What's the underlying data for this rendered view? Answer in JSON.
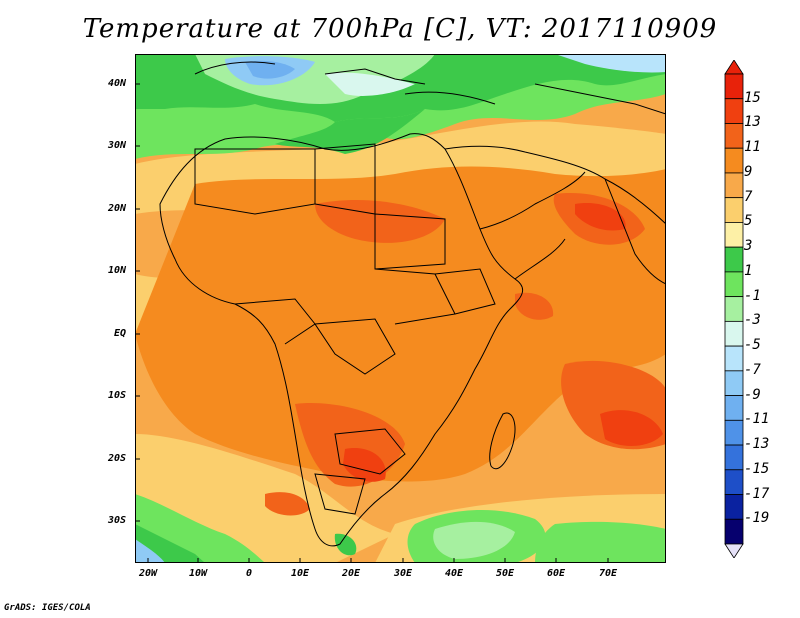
{
  "title": "Temperature at 700hPa [C], VT: 2017110909",
  "credit": "GrADS: IGES/COLA",
  "map": {
    "projection": "lat-lon",
    "lon_range": [
      -23,
      80
    ],
    "lat_range": [
      -37,
      45
    ],
    "variable": "Temperature at 700hPa",
    "units": "C",
    "valid_time": "2017110909",
    "lat_labels": [
      "40N",
      "30N",
      "20N",
      "10N",
      "EQ",
      "10S",
      "20S",
      "30S"
    ],
    "lon_labels": [
      "20W",
      "10W",
      "0",
      "10E",
      "20E",
      "30E",
      "40E",
      "50E",
      "60E",
      "70E"
    ]
  },
  "colorbar": {
    "labels": [
      "15",
      "13",
      "11",
      "9",
      "7",
      "5",
      "3",
      "1",
      "-1",
      "-3",
      "-5",
      "-7",
      "-9",
      "-11",
      "-13",
      "-15",
      "-17",
      "-19"
    ],
    "colors": [
      "#e8220a",
      "#f04010",
      "#f2631a",
      "#f58b1f",
      "#f8a94a",
      "#fbcf6d",
      "#fdf0a6",
      "#3dc94a",
      "#6ee45e",
      "#a6f0a0",
      "#d9f7ee",
      "#b8e4fb",
      "#8fcaf5",
      "#6fb0f0",
      "#4f92e8",
      "#3472dc",
      "#1e4fc8",
      "#0a22a0",
      "#06006e"
    ]
  }
}
